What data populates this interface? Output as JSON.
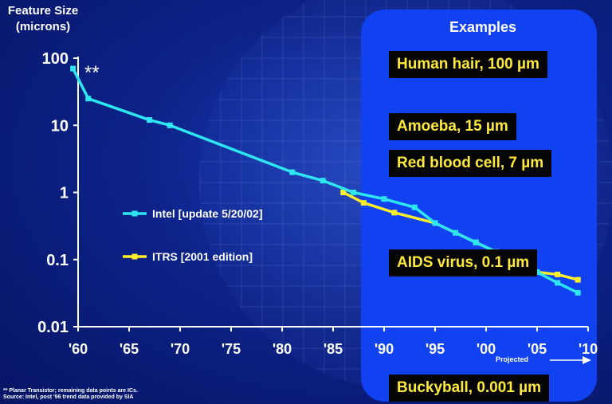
{
  "chart_data": {
    "type": "line",
    "ylabel": "Feature Size\n(microns)",
    "yscale": "log",
    "ylim": [
      0.01,
      100
    ],
    "xlim": [
      1960,
      2010
    ],
    "ytick_labels": [
      "100",
      "10",
      "1",
      "0.1",
      "0.01"
    ],
    "ytick_values": [
      100,
      10,
      1,
      0.1,
      0.01
    ],
    "xtick_labels": [
      "'60",
      "'65",
      "'70",
      "'75",
      "'80",
      "'85",
      "'90",
      "'95",
      "'00",
      "'05",
      "'10"
    ],
    "xtick_values": [
      1960,
      1965,
      1970,
      1975,
      1980,
      1985,
      1990,
      1995,
      2000,
      2005,
      2010
    ],
    "series": [
      {
        "name": "Intel [update 5/20/02]",
        "color": "#2ee6f0",
        "x": [
          1959.5,
          1961,
          1967,
          1969,
          1981,
          1984,
          1987,
          1990,
          1993,
          1995,
          1997,
          1999,
          2001,
          2003,
          2005,
          2007,
          2009
        ],
        "y": [
          70,
          25,
          12,
          10,
          2,
          1.5,
          1,
          0.8,
          0.6,
          0.35,
          0.25,
          0.18,
          0.13,
          0.09,
          0.065,
          0.045,
          0.032
        ]
      },
      {
        "name": "ITRS [2001 edition]",
        "color": "#ffee2a",
        "x": [
          1986,
          1988,
          1991,
          1995,
          1999,
          2001,
          2003,
          2005,
          2007,
          2009
        ],
        "y": [
          1,
          0.7,
          0.5,
          0.35,
          0.18,
          0.13,
          0.09,
          0.065,
          0.06,
          0.05
        ]
      }
    ],
    "annotations": [
      "**",
      "Projected"
    ],
    "footnote": "** Planar Transistor; remaining data points are ICs.\nSource: Intel, post '96 trend data provided by SIA"
  },
  "examples_panel": {
    "title": "Examples",
    "items": [
      "Human hair, 100 µm",
      "Amoeba, 15 µm",
      "Red blood cell, 7 µm",
      "AIDS virus, 0.1 µm",
      "Buckyball, 0.001 µm"
    ]
  }
}
